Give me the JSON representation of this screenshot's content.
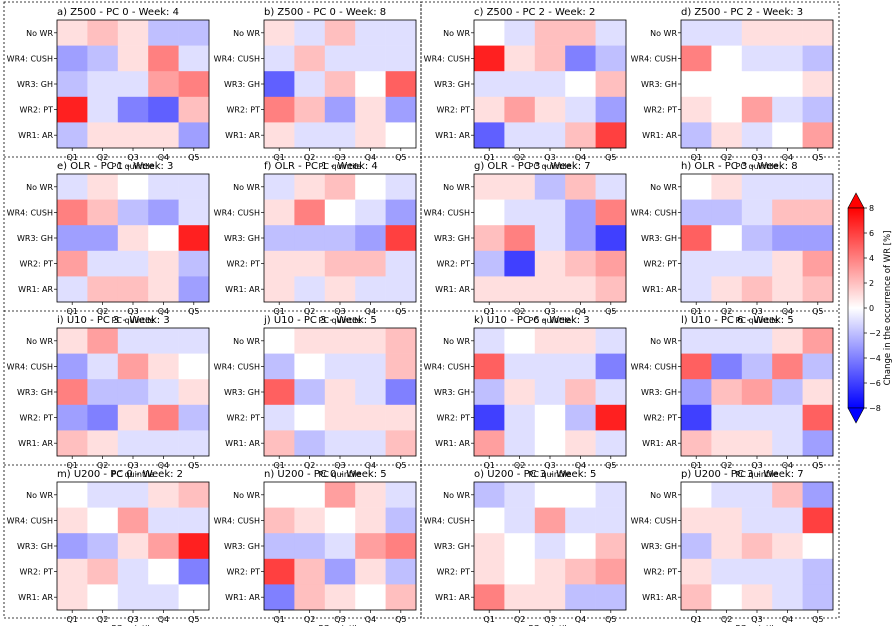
{
  "chart_data": {
    "type": "heatmap",
    "rows": [
      "No WR",
      "WR4: CUSH",
      "WR3: GH",
      "WR2: PT",
      "WR1: AR"
    ],
    "columns": [
      "Q1",
      "Q2",
      "Q3",
      "Q4",
      "Q5"
    ],
    "xlabel": "PC quintile",
    "colorbar": {
      "label": "Change in the occurrence of WR [%]",
      "ticks": [
        "8",
        "6",
        "4",
        "2",
        "0",
        "−2",
        "−4",
        "−6",
        "−8"
      ],
      "range": [
        -8,
        8
      ],
      "colors": {
        "low": "#0000ff",
        "mid": "#ffffff",
        "high": "#ff0000"
      }
    },
    "panels": [
      {
        "title": "a) Z500 - PC 0 - Week: 4",
        "values": [
          [
            1,
            2,
            1,
            -2,
            -2
          ],
          [
            -3,
            -2,
            1,
            4,
            -1
          ],
          [
            -2,
            -1,
            -1,
            3,
            4
          ],
          [
            7,
            -1,
            -4,
            -5,
            2
          ],
          [
            -2,
            1,
            1,
            1,
            -3
          ]
        ]
      },
      {
        "title": "b) Z500 - PC 0 - Week: 8",
        "values": [
          [
            1,
            -1,
            2,
            -1,
            -1
          ],
          [
            -1,
            2,
            -1,
            -1,
            -1
          ],
          [
            -5,
            -1,
            2,
            0,
            5
          ],
          [
            4,
            2,
            -3,
            1,
            -3
          ],
          [
            1,
            -1,
            -1,
            1,
            0
          ]
        ]
      },
      {
        "title": "c) Z500 - PC 2 - Week: 2",
        "values": [
          [
            0,
            -1,
            2,
            2,
            -1
          ],
          [
            7,
            1,
            2,
            -4,
            -2
          ],
          [
            -1,
            -1,
            -1,
            0,
            2
          ],
          [
            1,
            3,
            1,
            -1,
            -3
          ],
          [
            -5,
            -1,
            -1,
            2,
            6
          ]
        ]
      },
      {
        "title": "d) Z500 - PC 2 - Week: 3",
        "values": [
          [
            -1,
            -1,
            1,
            1,
            1
          ],
          [
            4,
            0,
            -1,
            -1,
            -2
          ],
          [
            0,
            0,
            0,
            0,
            1
          ],
          [
            1,
            0,
            3,
            -1,
            -2
          ],
          [
            -2,
            1,
            -1,
            0,
            3
          ]
        ]
      },
      {
        "title": "e) OLR - PC 1 - Week: 3",
        "values": [
          [
            -1,
            1,
            0,
            -1,
            -1
          ],
          [
            4,
            2,
            -2,
            -3,
            -1
          ],
          [
            -3,
            -3,
            1,
            0,
            7
          ],
          [
            3,
            -1,
            -1,
            1,
            -2
          ],
          [
            -1,
            2,
            2,
            1,
            -3
          ]
        ]
      },
      {
        "title": "f) OLR - PC 1 - Week: 4",
        "values": [
          [
            -1,
            1,
            2,
            0,
            -1
          ],
          [
            1,
            4,
            0,
            -1,
            -3
          ],
          [
            -2,
            -2,
            -2,
            -3,
            6
          ],
          [
            1,
            1,
            2,
            2,
            -1
          ],
          [
            1,
            -1,
            1,
            -1,
            -1
          ]
        ]
      },
      {
        "title": "g) OLR - PC 3 - Week: 7",
        "values": [
          [
            1,
            1,
            -2,
            2,
            -1
          ],
          [
            0,
            -1,
            -1,
            -3,
            4
          ],
          [
            2,
            4,
            -1,
            -3,
            -6
          ],
          [
            -2,
            -6,
            1,
            2,
            3
          ],
          [
            1,
            1,
            1,
            1,
            2
          ]
        ]
      },
      {
        "title": "h) OLR - PC 3 - Week: 8",
        "values": [
          [
            0,
            1,
            -1,
            -1,
            -1
          ],
          [
            -2,
            -2,
            -1,
            2,
            2
          ],
          [
            5,
            0,
            -2,
            -3,
            -3
          ],
          [
            -1,
            -1,
            -1,
            1,
            3
          ],
          [
            -1,
            1,
            2,
            1,
            2
          ]
        ]
      },
      {
        "title": "i) U10 - PC 3 - Week: 3",
        "values": [
          [
            1,
            3,
            -1,
            -1,
            -1
          ],
          [
            -3,
            -1,
            3,
            1,
            0
          ],
          [
            4,
            -2,
            -2,
            -1,
            1
          ],
          [
            -3,
            -4,
            1,
            4,
            -2
          ],
          [
            2,
            1,
            -1,
            -1,
            -1
          ]
        ]
      },
      {
        "title": "j) U10 - PC 3 - Week: 5",
        "values": [
          [
            0,
            1,
            1,
            1,
            2
          ],
          [
            -2,
            0,
            -1,
            -1,
            2
          ],
          [
            5,
            -2,
            1,
            -1,
            -4
          ],
          [
            -1,
            0,
            1,
            1,
            1
          ],
          [
            2,
            -2,
            -1,
            -1,
            2
          ]
        ]
      },
      {
        "title": "k) U10 - PC 6 - Week: 3",
        "values": [
          [
            -1,
            0,
            1,
            1,
            -1
          ],
          [
            5,
            -1,
            -1,
            -1,
            -4
          ],
          [
            -2,
            1,
            -1,
            2,
            -1
          ],
          [
            -6,
            -1,
            0,
            -2,
            7
          ],
          [
            3,
            -1,
            0,
            1,
            -1
          ]
        ]
      },
      {
        "title": "l) U10 - PC 6 - Week: 5",
        "values": [
          [
            -1,
            -1,
            -1,
            1,
            3
          ],
          [
            5,
            -4,
            -2,
            4,
            -2
          ],
          [
            -3,
            2,
            3,
            -2,
            1
          ],
          [
            -6,
            -1,
            -1,
            -1,
            5
          ],
          [
            2,
            1,
            1,
            -1,
            -3
          ]
        ]
      },
      {
        "title": "m) U200 - PC 0 - Week: 2",
        "values": [
          [
            0,
            -1,
            -1,
            1,
            2
          ],
          [
            1,
            0,
            3,
            -1,
            -1
          ],
          [
            -3,
            -2,
            1,
            3,
            7
          ],
          [
            1,
            2,
            -1,
            0,
            -4
          ],
          [
            1,
            0,
            -1,
            -1,
            0
          ]
        ]
      },
      {
        "title": "n) U200 - PC 0 - Week: 5",
        "values": [
          [
            0,
            0,
            3,
            1,
            -1
          ],
          [
            2,
            1,
            0,
            1,
            -2
          ],
          [
            -2,
            -2,
            -1,
            3,
            4
          ],
          [
            6,
            2,
            -3,
            1,
            -2
          ],
          [
            -4,
            2,
            1,
            0,
            2
          ]
        ]
      },
      {
        "title": "o) U200 - PC 3 - Week: 5",
        "values": [
          [
            -2,
            -1,
            0,
            0,
            -1
          ],
          [
            0,
            -1,
            3,
            -1,
            -1
          ],
          [
            1,
            0,
            -1,
            0,
            2
          ],
          [
            1,
            0,
            1,
            2,
            3
          ],
          [
            4,
            1,
            1,
            -2,
            -2
          ]
        ]
      },
      {
        "title": "p) U200 - PC 3 - Week: 7",
        "values": [
          [
            0,
            -1,
            -1,
            2,
            -3
          ],
          [
            1,
            1,
            -1,
            -1,
            6
          ],
          [
            -2,
            1,
            2,
            1,
            0
          ],
          [
            1,
            -1,
            -1,
            -1,
            -2
          ],
          [
            2,
            0,
            1,
            -1,
            -2
          ]
        ]
      }
    ]
  }
}
